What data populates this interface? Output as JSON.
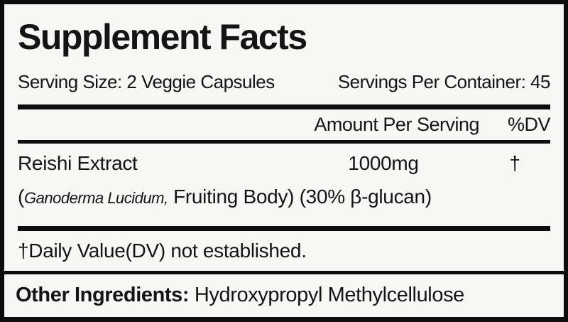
{
  "label": {
    "title": "Supplement Facts",
    "serving_size": "Serving Size: 2 Veggie Capsules",
    "servings_per_container": "Servings Per Container: 45",
    "columns": {
      "amount_header": "Amount Per Serving",
      "dv_header": "%DV"
    },
    "ingredient": {
      "name": "Reishi Extract",
      "amount": "1000mg",
      "dv": "†",
      "desc_prefix": "(",
      "desc_latin": "Ganoderma Lucidum,",
      "desc_rest": " Fruiting Body) (30% β-glucan)"
    },
    "footnote": "†Daily Value(DV) not established.",
    "other_ingredients": {
      "label": "Other Ingredients:",
      "value": "Hydroxypropyl Methylcellulose"
    },
    "colors": {
      "background": "#f7f7f5",
      "text": "#141414",
      "border": "#0d0d0d"
    }
  }
}
